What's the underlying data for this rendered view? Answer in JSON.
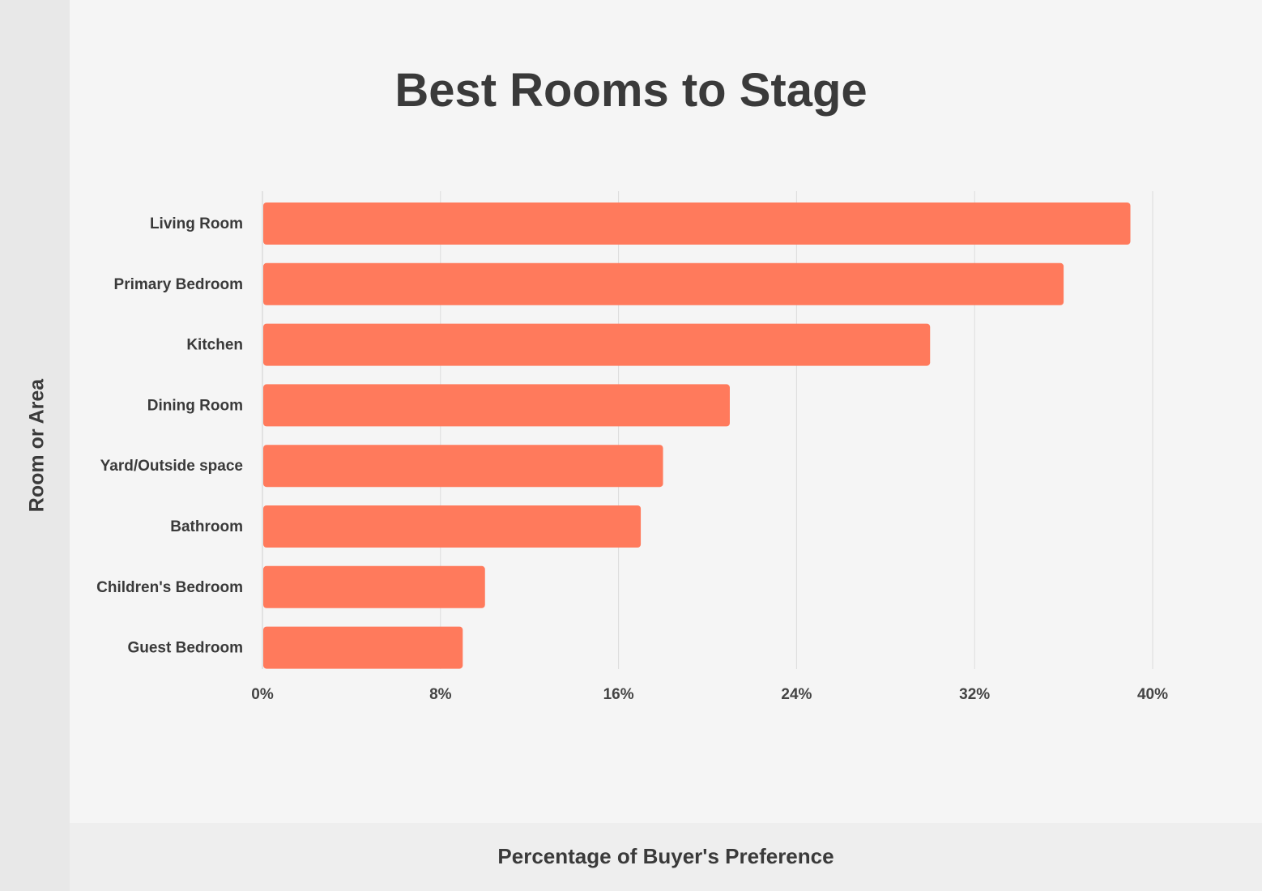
{
  "chart_data": {
    "type": "bar",
    "orientation": "horizontal",
    "title": "Best Rooms to Stage",
    "xlabel": "Percentage of Buyer's Preference",
    "ylabel": "Room or Area",
    "categories": [
      "Living Room",
      "Primary Bedroom",
      "Kitchen",
      "Dining Room",
      "Yard/Outside space",
      "Bathroom",
      "Children's Bedroom",
      "Guest Bedroom"
    ],
    "values": [
      39,
      36,
      30,
      21,
      18,
      17,
      10,
      9
    ],
    "xlim": [
      0,
      40
    ],
    "ticks": [
      0,
      8,
      16,
      24,
      32,
      40
    ],
    "tick_labels": [
      "0%",
      "8%",
      "16%",
      "24%",
      "32%",
      "40%"
    ],
    "grid": "vertical",
    "bar_color": "#ff7a5c",
    "grid_color": "#dcdcdc"
  }
}
